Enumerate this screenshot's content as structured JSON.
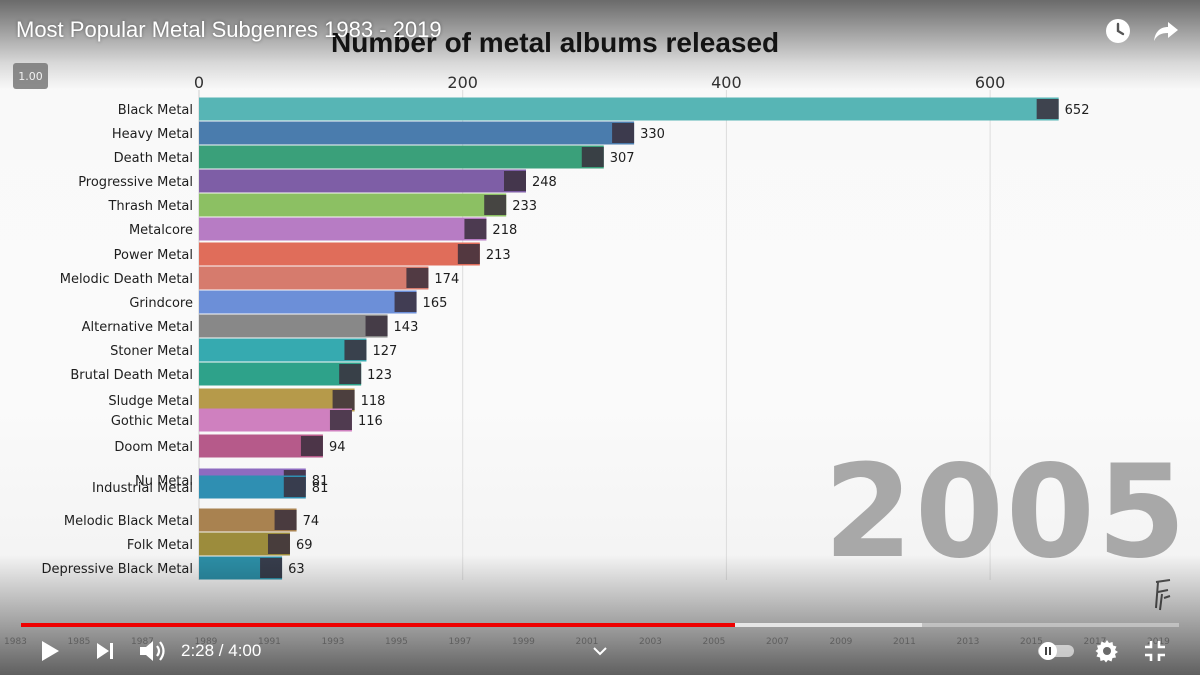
{
  "video": {
    "title": "Most Popular Metal Subgenres 1983 - 2019",
    "speed_badge": "1.00",
    "time": "2:28 / 4:00",
    "progress_fraction": 0.617,
    "buffer_fraction": 0.778,
    "timeline_years": [
      "1983",
      "1985",
      "1987",
      "1989",
      "1991",
      "1993",
      "1995",
      "1997",
      "1999",
      "2001",
      "2003",
      "2005",
      "2007",
      "2009",
      "2011",
      "2013",
      "2015",
      "2017",
      "2019"
    ]
  },
  "chart_data": {
    "type": "bar",
    "title": "Number of metal albums released",
    "year": "2005",
    "xlim": [
      0,
      700
    ],
    "ticks": [
      0,
      200,
      400,
      600
    ],
    "categories": [
      "Black Metal",
      "Heavy Metal",
      "Death Metal",
      "Progressive Metal",
      "Thrash Metal",
      "Metalcore",
      "Power Metal",
      "Melodic Death Metal",
      "Grindcore",
      "Alternative Metal",
      "Stoner Metal",
      "Brutal Death Metal",
      "Sludge Metal",
      "Gothic Metal",
      "Doom Metal",
      "Nu Metal",
      "Industrial Metal",
      "Melodic Black Metal",
      "Folk Metal",
      "Depressive Black Metal"
    ],
    "values": [
      652,
      330,
      307,
      248,
      233,
      218,
      213,
      174,
      165,
      143,
      127,
      123,
      118,
      116,
      94,
      81,
      81,
      74,
      69,
      63
    ],
    "colors": [
      "#57b5b5",
      "#4a7cad",
      "#3aa07a",
      "#7e5ea6",
      "#8cc063",
      "#b77cc4",
      "#e06d5a",
      "#d67b6d",
      "#6c8fd8",
      "#888888",
      "#36aab0",
      "#2ea28a",
      "#b69a4a",
      "#cf80bf",
      "#b65a8a",
      "#8e6bc0",
      "#2f8fb2",
      "#a98250",
      "#9c8c3c",
      "#2c8ea6"
    ]
  }
}
